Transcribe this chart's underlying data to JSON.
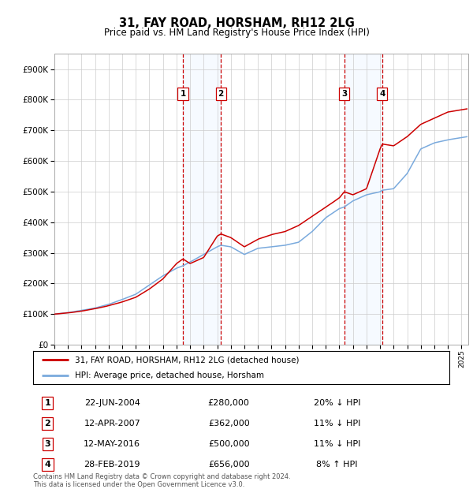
{
  "title": "31, FAY ROAD, HORSHAM, RH12 2LG",
  "subtitle": "Price paid vs. HM Land Registry's House Price Index (HPI)",
  "footer": "Contains HM Land Registry data © Crown copyright and database right 2024.\nThis data is licensed under the Open Government Licence v3.0.",
  "legend_label_red": "31, FAY ROAD, HORSHAM, RH12 2LG (detached house)",
  "legend_label_blue": "HPI: Average price, detached house, Horsham",
  "transactions": [
    {
      "num": 1,
      "date": "22-JUN-2004",
      "price": 280000,
      "hpi_pct": "20%",
      "hpi_dir": "↓"
    },
    {
      "num": 2,
      "date": "12-APR-2007",
      "price": 362000,
      "hpi_pct": "11%",
      "hpi_dir": "↓"
    },
    {
      "num": 3,
      "date": "12-MAY-2016",
      "price": 500000,
      "hpi_pct": "11%",
      "hpi_dir": "↓"
    },
    {
      "num": 4,
      "date": "28-FEB-2019",
      "price": 656000,
      "hpi_pct": "8%",
      "hpi_dir": "↑"
    }
  ],
  "transaction_dates_num": [
    2004.47,
    2007.27,
    2016.36,
    2019.16
  ],
  "ylim": [
    0,
    950000
  ],
  "yticks": [
    0,
    100000,
    200000,
    300000,
    400000,
    500000,
    600000,
    700000,
    800000,
    900000
  ],
  "xlim_start": 1995.0,
  "xlim_end": 2025.5,
  "color_red": "#cc0000",
  "color_blue": "#7aaadd",
  "color_shading": "#ddeeff",
  "color_vline": "#cc0000",
  "grid_color": "#cccccc",
  "background_color": "#ffffff",
  "hpi_anchors": [
    [
      1995.0,
      100000
    ],
    [
      1996.0,
      105000
    ],
    [
      1997.0,
      112000
    ],
    [
      1998.0,
      120000
    ],
    [
      1999.0,
      132000
    ],
    [
      2000.0,
      148000
    ],
    [
      2001.0,
      165000
    ],
    [
      2002.0,
      195000
    ],
    [
      2003.0,
      225000
    ],
    [
      2004.0,
      250000
    ],
    [
      2004.47,
      258000
    ],
    [
      2005.0,
      270000
    ],
    [
      2006.0,
      295000
    ],
    [
      2007.0,
      320000
    ],
    [
      2007.27,
      325000
    ],
    [
      2008.0,
      320000
    ],
    [
      2009.0,
      295000
    ],
    [
      2010.0,
      315000
    ],
    [
      2011.0,
      320000
    ],
    [
      2012.0,
      325000
    ],
    [
      2013.0,
      335000
    ],
    [
      2014.0,
      370000
    ],
    [
      2015.0,
      415000
    ],
    [
      2016.0,
      445000
    ],
    [
      2016.36,
      450000
    ],
    [
      2017.0,
      470000
    ],
    [
      2018.0,
      490000
    ],
    [
      2019.0,
      500000
    ],
    [
      2019.16,
      505000
    ],
    [
      2020.0,
      510000
    ],
    [
      2021.0,
      560000
    ],
    [
      2022.0,
      640000
    ],
    [
      2023.0,
      660000
    ],
    [
      2024.0,
      670000
    ],
    [
      2025.4,
      680000
    ]
  ],
  "red_anchors": [
    [
      1995.0,
      100000
    ],
    [
      1996.0,
      104000
    ],
    [
      1997.0,
      110000
    ],
    [
      1998.0,
      118000
    ],
    [
      1999.0,
      128000
    ],
    [
      2000.0,
      140000
    ],
    [
      2001.0,
      155000
    ],
    [
      2002.0,
      182000
    ],
    [
      2003.0,
      215000
    ],
    [
      2004.0,
      265000
    ],
    [
      2004.47,
      280000
    ],
    [
      2005.0,
      265000
    ],
    [
      2006.0,
      285000
    ],
    [
      2007.0,
      355000
    ],
    [
      2007.27,
      362000
    ],
    [
      2008.0,
      350000
    ],
    [
      2009.0,
      320000
    ],
    [
      2010.0,
      345000
    ],
    [
      2011.0,
      360000
    ],
    [
      2012.0,
      370000
    ],
    [
      2013.0,
      390000
    ],
    [
      2014.0,
      420000
    ],
    [
      2015.0,
      450000
    ],
    [
      2016.0,
      480000
    ],
    [
      2016.36,
      500000
    ],
    [
      2017.0,
      490000
    ],
    [
      2018.0,
      510000
    ],
    [
      2019.0,
      640000
    ],
    [
      2019.16,
      656000
    ],
    [
      2020.0,
      650000
    ],
    [
      2021.0,
      680000
    ],
    [
      2022.0,
      720000
    ],
    [
      2023.0,
      740000
    ],
    [
      2024.0,
      760000
    ],
    [
      2025.4,
      770000
    ]
  ]
}
